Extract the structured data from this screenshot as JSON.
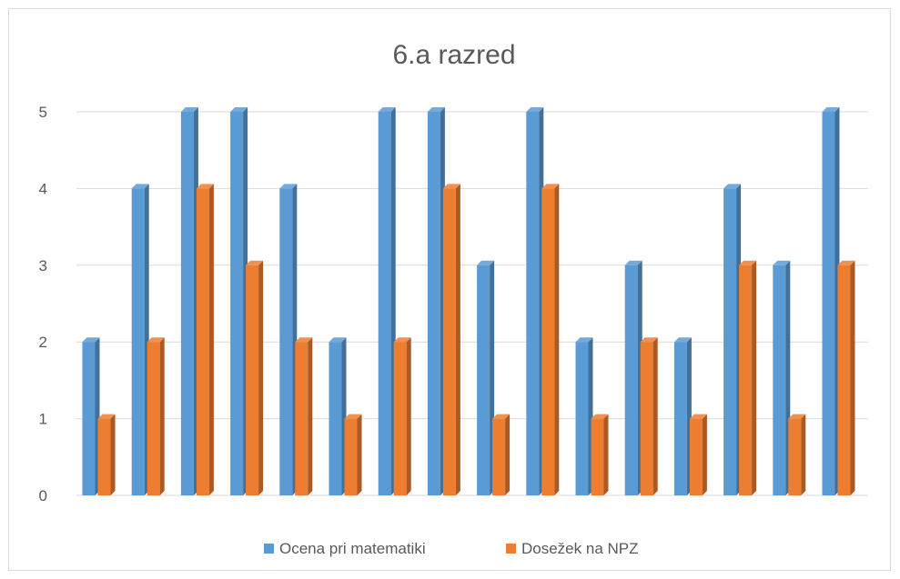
{
  "chart_data": {
    "type": "bar",
    "title": "6.a razred",
    "xlabel": "",
    "ylabel": "",
    "ylim": [
      0,
      5
    ],
    "yticks": [
      0,
      1,
      2,
      3,
      4,
      5
    ],
    "grid": true,
    "legend_position": "bottom",
    "categories": [
      "",
      "",
      "",
      "",
      "",
      "",
      "",
      "",
      "",
      "",
      "",
      "",
      "",
      "",
      "",
      ""
    ],
    "series": [
      {
        "name": "Ocena pri matematiki",
        "color": "#5B9BD5",
        "values": [
          2,
          4,
          5,
          5,
          4,
          2,
          5,
          5,
          3,
          5,
          2,
          3,
          2,
          4,
          3,
          5
        ]
      },
      {
        "name": "Dosežek na NPZ",
        "color": "#ED7D31",
        "values": [
          1,
          2,
          4,
          3,
          2,
          1,
          2,
          4,
          1,
          4,
          1,
          2,
          1,
          3,
          1,
          3
        ]
      }
    ]
  }
}
